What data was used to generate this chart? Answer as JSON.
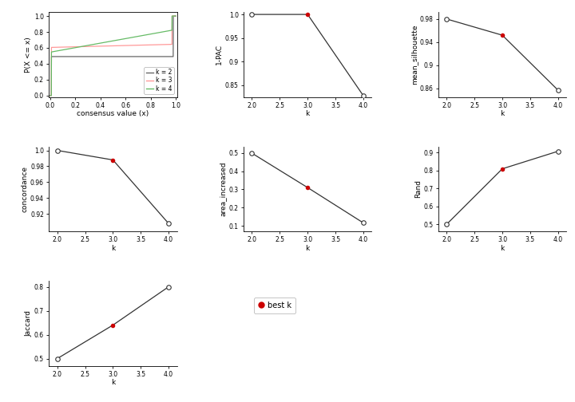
{
  "ecdf": {
    "k2": {
      "color": "#666666",
      "label": "k = 2"
    },
    "k3": {
      "color": "#FF9999",
      "label": "k = 3"
    },
    "k4": {
      "color": "#66BB66",
      "label": "k = 4"
    }
  },
  "plots": {
    "pac": {
      "k": [
        2,
        3,
        4
      ],
      "y": [
        1.0,
        1.0,
        0.828
      ],
      "best_k": 3,
      "ylabel": "1-PAC",
      "ylim": [
        0.825,
        1.005
      ],
      "yticks": [
        0.85,
        0.9,
        0.95,
        1.0
      ]
    },
    "silhouette": {
      "k": [
        2,
        3,
        4
      ],
      "y": [
        0.98,
        0.952,
        0.857
      ],
      "best_k": 3,
      "ylabel": "mean_silhouette",
      "ylim": [
        0.845,
        0.992
      ],
      "yticks": [
        0.86,
        0.9,
        0.94,
        0.98
      ]
    },
    "concordance": {
      "k": [
        2,
        3,
        4
      ],
      "y": [
        1.0,
        0.988,
        0.908
      ],
      "best_k": 3,
      "ylabel": "concordance",
      "ylim": [
        0.898,
        1.005
      ],
      "yticks": [
        0.92,
        0.94,
        0.96,
        0.98,
        1.0
      ]
    },
    "area_increased": {
      "k": [
        2,
        3,
        4
      ],
      "y": [
        0.498,
        0.31,
        0.117
      ],
      "best_k": 3,
      "ylabel": "area_increased",
      "ylim": [
        0.07,
        0.535
      ],
      "yticks": [
        0.1,
        0.2,
        0.3,
        0.4,
        0.5
      ]
    },
    "rand": {
      "k": [
        2,
        3,
        4
      ],
      "y": [
        0.5,
        0.81,
        0.908
      ],
      "best_k": 3,
      "ylabel": "Rand",
      "ylim": [
        0.46,
        0.935
      ],
      "yticks": [
        0.5,
        0.6,
        0.7,
        0.8,
        0.9
      ]
    },
    "jaccard": {
      "k": [
        2,
        3,
        4
      ],
      "y": [
        0.5,
        0.64,
        0.8
      ],
      "best_k": 3,
      "ylabel": "Jaccard",
      "ylim": [
        0.47,
        0.825
      ],
      "yticks": [
        0.5,
        0.6,
        0.7,
        0.8
      ]
    }
  },
  "line_color": "#333333",
  "best_color": "#CC0000",
  "open_color": "white",
  "open_edge": "#333333",
  "xlabel": "k",
  "bg_color": "white"
}
